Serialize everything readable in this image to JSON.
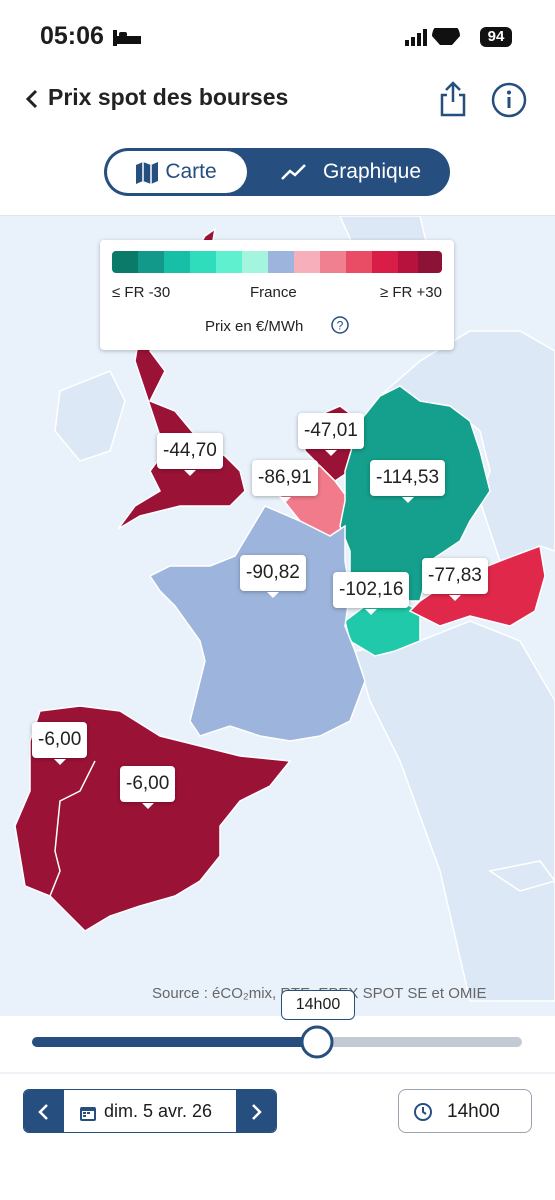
{
  "status_bar": {
    "time": "05:06",
    "battery": "94"
  },
  "header": {
    "title": "Prix spot des bourses"
  },
  "tabs": [
    "Carte",
    "Graphique"
  ],
  "legend": {
    "min_label": "≤ FR -30",
    "mid_label": "France",
    "max_label": "≥ FR +30",
    "unit": "Prix en €/MWh"
  },
  "prices": [
    {
      "country": "uk",
      "label": "-44,70"
    },
    {
      "country": "netherlands",
      "label": "-47,01"
    },
    {
      "country": "belgium",
      "label": "-86,91"
    },
    {
      "country": "germany",
      "label": "-114,53"
    },
    {
      "country": "france",
      "label": "-90,82"
    },
    {
      "country": "switzerland",
      "label": "-102,16"
    },
    {
      "country": "austria",
      "label": "-77,83"
    },
    {
      "country": "portugal",
      "label": "-6,00"
    },
    {
      "country": "spain",
      "label": "-6,00"
    }
  ],
  "source": "Source : éCO₂mix, RTE, EPEX SPOT SE et OMIE",
  "slider": {
    "label": "14h00"
  },
  "footer": {
    "date": "dim. 5 avr. 26",
    "time": "14h00"
  }
}
